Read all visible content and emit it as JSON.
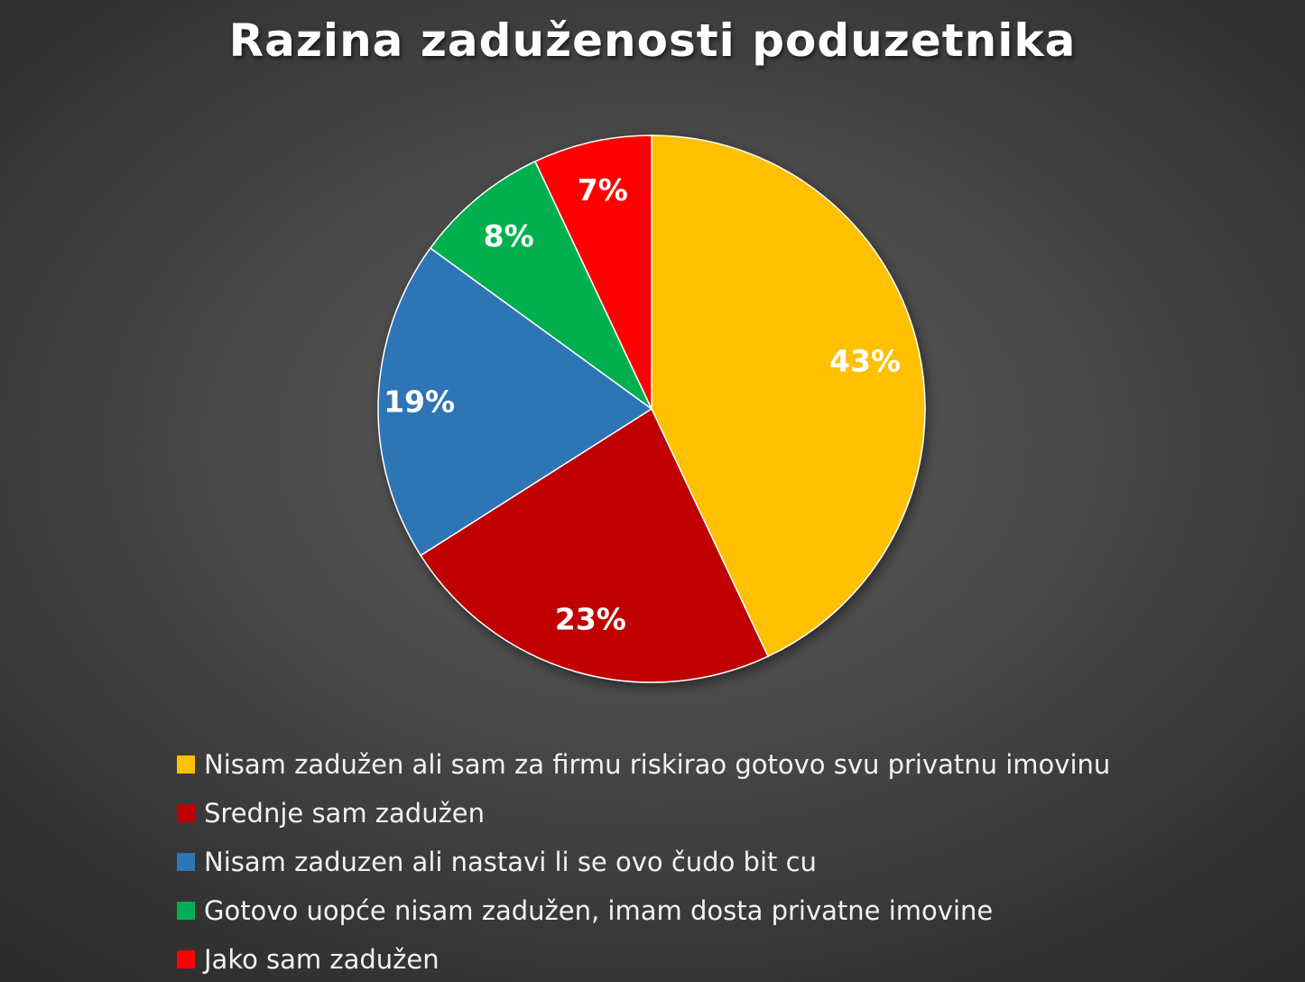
{
  "chart_data": {
    "type": "pie",
    "title": "Razina zaduženosti poduzetnika",
    "categories": [
      "Nisam zadužen ali sam za firmu riskirao gotovo svu privatnu imovinu",
      "Srednje sam zadužen",
      "Nisam zaduzen ali nastavi li se ovo čudo bit cu",
      "Gotovo uopće nisam zadužen, imam dosta privatne imovine",
      "Jako sam zadužen"
    ],
    "values": [
      43,
      23,
      19,
      8,
      7
    ],
    "labels": [
      "43%",
      "23%",
      "19%",
      "8%",
      "7%"
    ],
    "colors": [
      "#FFC000",
      "#C00000",
      "#2E75B6",
      "#00B050",
      "#FF0000"
    ],
    "legend_position": "bottom"
  }
}
